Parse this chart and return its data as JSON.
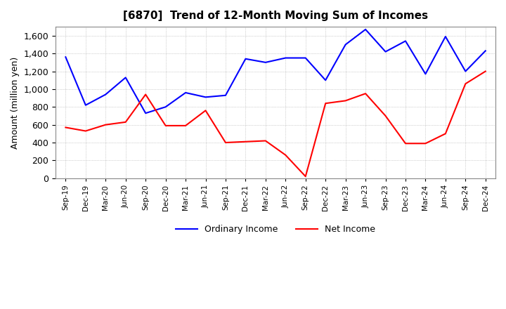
{
  "title": "[6870]  Trend of 12-Month Moving Sum of Incomes",
  "ylabel": "Amount (million yen)",
  "x_labels": [
    "Sep-19",
    "Dec-19",
    "Mar-20",
    "Jun-20",
    "Sep-20",
    "Dec-20",
    "Mar-21",
    "Jun-21",
    "Sep-21",
    "Dec-21",
    "Mar-22",
    "Jun-22",
    "Sep-22",
    "Dec-22",
    "Mar-23",
    "Jun-23",
    "Sep-23",
    "Dec-23",
    "Mar-24",
    "Jun-24",
    "Sep-24",
    "Dec-24"
  ],
  "ordinary_income": [
    1360,
    820,
    940,
    1130,
    730,
    800,
    960,
    910,
    930,
    1340,
    1300,
    1350,
    1350,
    1100,
    1500,
    1670,
    1420,
    1540,
    1170,
    1590,
    1200,
    1430
  ],
  "net_income": [
    570,
    530,
    600,
    630,
    940,
    590,
    590,
    760,
    400,
    410,
    420,
    260,
    20,
    840,
    870,
    950,
    700,
    390,
    390,
    500,
    1060,
    1200
  ],
  "ordinary_color": "#0000FF",
  "net_color": "#FF0000",
  "ylim": [
    0,
    1700
  ],
  "yticks": [
    0,
    200,
    400,
    600,
    800,
    1000,
    1200,
    1400,
    1600
  ],
  "legend_labels": [
    "Ordinary Income",
    "Net Income"
  ],
  "background_color": "#FFFFFF",
  "grid_color": "#AAAAAA"
}
